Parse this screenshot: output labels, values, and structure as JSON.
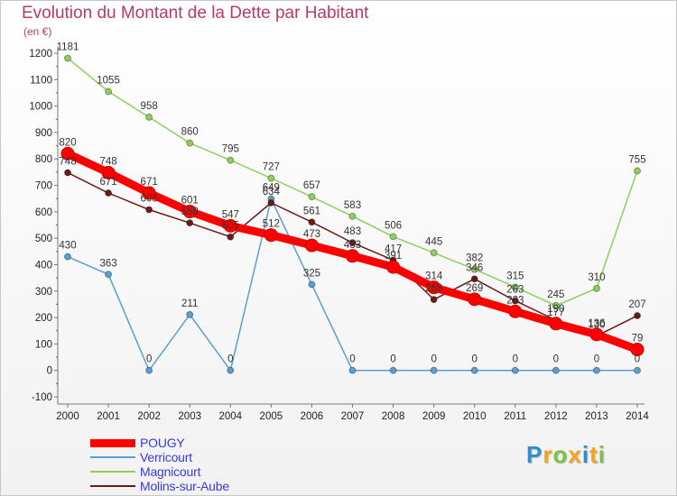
{
  "header": {
    "title": "Evolution du Montant de la Dette par Habitant",
    "unit": "(en €)"
  },
  "chart_data": {
    "type": "line",
    "title": "Evolution du Montant de la Dette par Habitant",
    "ylabel": "(en €)",
    "xlabel": "",
    "x": [
      "2000",
      "2001",
      "2002",
      "2003",
      "2004",
      "2005",
      "2006",
      "2007",
      "2008",
      "2009",
      "2010",
      "2011",
      "2012",
      "2013",
      "2014"
    ],
    "ylim": [
      -100,
      1200
    ],
    "yticks": [
      -100,
      0,
      100,
      200,
      300,
      400,
      500,
      600,
      700,
      800,
      900,
      1000,
      1100,
      1200
    ],
    "grid": false,
    "legend": "bottom-left",
    "series": [
      {
        "name": "Verricourt",
        "color": "#5b9fd0",
        "values": [
          430,
          363,
          0,
          211,
          0,
          649,
          325,
          0,
          0,
          0,
          0,
          0,
          0,
          0,
          0
        ]
      },
      {
        "name": "Magnicourt",
        "color": "#8ed05a",
        "values": [
          1181,
          1055,
          958,
          860,
          795,
          727,
          657,
          583,
          506,
          445,
          382,
          315,
          245,
          310,
          755
        ]
      },
      {
        "name": "Molins-sur-Aube",
        "color": "#6b1a1a",
        "values": [
          748,
          671,
          608,
          558,
          505,
          634,
          561,
          483,
          417,
          268,
          346,
          263,
          190,
          130,
          207
        ]
      },
      {
        "name": "POUGY",
        "color": "#ff0000",
        "values": [
          820,
          748,
          671,
          601,
          547,
          512,
          473,
          433,
          391,
          314,
          269,
          223,
          177,
          136,
          79
        ]
      }
    ]
  },
  "legend": {
    "items": [
      {
        "label": "POUGY",
        "color": "#ff0000"
      },
      {
        "label": "Verricourt",
        "color": "#5b9fd0"
      },
      {
        "label": "Magnicourt",
        "color": "#8ed05a"
      },
      {
        "label": "Molins-sur-Aube",
        "color": "#6b1a1a"
      }
    ]
  },
  "logo": {
    "letters": [
      "P",
      "r",
      "o",
      "x",
      "i",
      "t",
      "i"
    ],
    "colors": [
      "#2a8fd8",
      "#f7a21b",
      "#7cc242",
      "#f7a21b",
      "#2a8fd8",
      "#f7a21b",
      "#7cc242"
    ]
  }
}
